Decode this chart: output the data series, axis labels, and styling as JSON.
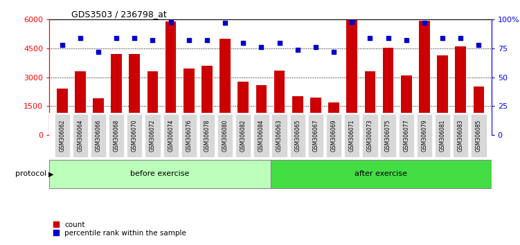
{
  "title": "GDS3503 / 236798_at",
  "categories": [
    "GSM306062",
    "GSM306064",
    "GSM306066",
    "GSM306068",
    "GSM306070",
    "GSM306072",
    "GSM306074",
    "GSM306076",
    "GSM306078",
    "GSM306080",
    "GSM306082",
    "GSM306084",
    "GSM306063",
    "GSM306065",
    "GSM306067",
    "GSM306069",
    "GSM306071",
    "GSM306073",
    "GSM306075",
    "GSM306077",
    "GSM306079",
    "GSM306081",
    "GSM306083",
    "GSM306085"
  ],
  "counts": [
    2400,
    3300,
    1900,
    4200,
    4200,
    3300,
    5900,
    3450,
    3600,
    5000,
    2750,
    2600,
    3350,
    2000,
    1950,
    1700,
    6000,
    3300,
    4550,
    3100,
    5950,
    4150,
    4600,
    2500
  ],
  "percentile_ranks": [
    78,
    84,
    72,
    84,
    84,
    82,
    98,
    82,
    82,
    97,
    80,
    76,
    80,
    74,
    76,
    72,
    98,
    84,
    84,
    82,
    97,
    84,
    84,
    78
  ],
  "before_exercise_count": 12,
  "after_exercise_count": 12,
  "bar_color": "#cc0000",
  "dot_color": "#0000cc",
  "before_color": "#bbffbb",
  "after_color": "#44dd44",
  "protocol_label": "protocol",
  "before_label": "before exercise",
  "after_label": "after exercise",
  "legend_count_label": "count",
  "legend_pct_label": "percentile rank within the sample",
  "ylim_left": [
    0,
    6000
  ],
  "ylim_right": [
    0,
    100
  ],
  "yticks_left": [
    0,
    1500,
    3000,
    4500,
    6000
  ],
  "ytick_labels_left": [
    "0",
    "1500",
    "3000",
    "4500",
    "6000"
  ],
  "yticks_right": [
    0,
    25,
    50,
    75,
    100
  ],
  "ytick_labels_right": [
    "0",
    "25",
    "50",
    "75",
    "100%"
  ]
}
